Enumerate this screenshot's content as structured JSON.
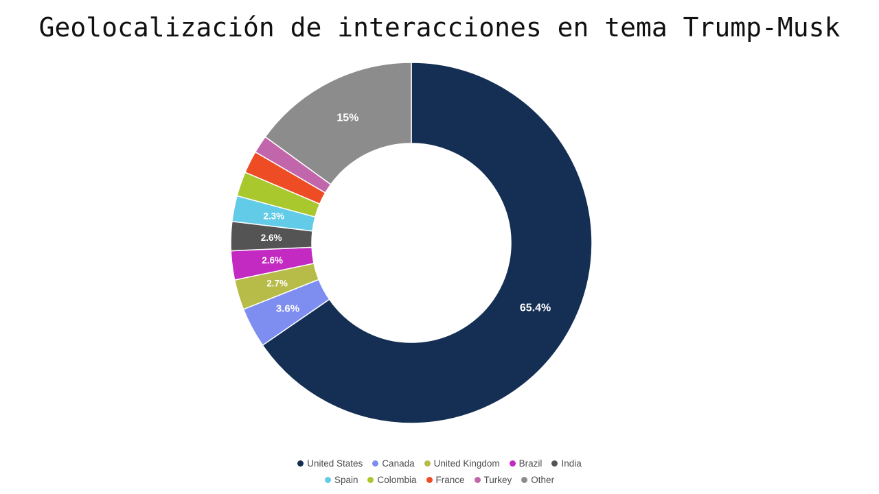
{
  "chart_data": {
    "type": "pie",
    "variant": "donut",
    "title": "Geolocalización de interacciones en tema Trump-Musk",
    "legend_position": "bottom",
    "unit": "%",
    "categories": [
      "United States",
      "Canada",
      "United Kingdom",
      "Brazil",
      "India",
      "Spain",
      "Colombia",
      "France",
      "Turkey",
      "Other"
    ],
    "values": [
      65.4,
      3.6,
      2.7,
      2.6,
      2.6,
      2.3,
      2.2,
      2.0,
      1.6,
      15.0
    ],
    "labels": [
      "65.4%",
      "3.6%",
      "2.7%",
      "2.6%",
      "2.6%",
      "2.3%",
      "",
      "",
      "",
      "15%"
    ],
    "colors": [
      "#142f53",
      "#7e8ef0",
      "#b7bb47",
      "#c22ac1",
      "#545454",
      "#62cbe8",
      "#a8c82e",
      "#ee4c25",
      "#c266ac",
      "#8c8c8c"
    ],
    "legend_rows": [
      5,
      5
    ]
  }
}
